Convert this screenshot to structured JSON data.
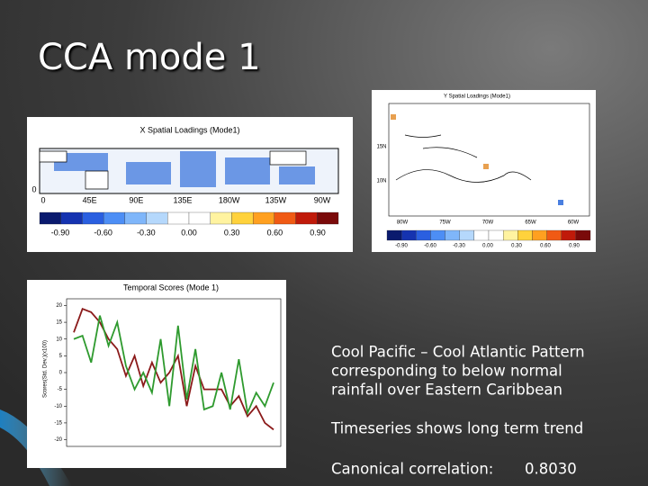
{
  "title": "CCA mode 1",
  "x_map": {
    "title": "X Spatial Loadings (Mode1)",
    "lat_label": "0",
    "lon_labels": [
      "0",
      "45E",
      "90E",
      "135E",
      "180W",
      "135W",
      "90W"
    ],
    "colorbar_labels": [
      "-0.90",
      "-0.60",
      "-0.30",
      "0.00",
      "0.30",
      "0.60",
      "0.90"
    ]
  },
  "y_map": {
    "title": "Y Spatial Loadings (Mode1)",
    "lat_labels": [
      "15N",
      "10N"
    ],
    "lon_labels": [
      "80W",
      "75W",
      "70W",
      "65W",
      "60W"
    ],
    "colorbar_labels": [
      "-0.90",
      "-0.60",
      "-0.30",
      "0.00",
      "0.30",
      "0.60",
      "0.90"
    ]
  },
  "chart_data": {
    "type": "line",
    "title": "Temporal Scores (Mode 1)",
    "y_label": "Scores(Std. Dev.)(x100)",
    "categories": [
      null,
      null,
      null,
      null,
      null,
      null,
      null,
      null,
      null,
      null,
      null,
      null,
      null,
      null,
      null,
      null,
      null,
      null,
      null,
      null,
      null,
      null,
      null,
      null
    ],
    "series": [
      {
        "color": "#8b1a1a",
        "values": [
          12,
          19,
          18,
          15,
          10,
          7,
          -1,
          5,
          -4,
          3,
          -3,
          0,
          5,
          -10,
          2,
          -5,
          -5,
          -5,
          -10,
          -7,
          -13,
          -10,
          -15,
          -17
        ]
      },
      {
        "color": "#2e9a2e",
        "values": [
          10,
          11,
          3,
          17,
          8,
          15,
          2,
          -5,
          0,
          -6,
          10,
          -10,
          14,
          -8,
          7,
          -11,
          -10,
          0,
          -11,
          4,
          -12,
          -6,
          -10,
          -3
        ]
      }
    ],
    "ylim": [
      -22,
      22
    ],
    "yticks": [
      -20,
      -15,
      -10,
      -5,
      0,
      5,
      10,
      15,
      20
    ]
  },
  "body": {
    "paragraphs": [
      {
        "lines": [
          "Cool Pacific – Cool Atlantic Pattern",
          "corresponding to below normal",
          "rainfall over Eastern Caribbean"
        ]
      },
      {
        "lines": [
          "Timeseries shows long term trend"
        ]
      }
    ],
    "correlation": {
      "label": "Canonical correlation:",
      "value": "0.8030"
    }
  }
}
